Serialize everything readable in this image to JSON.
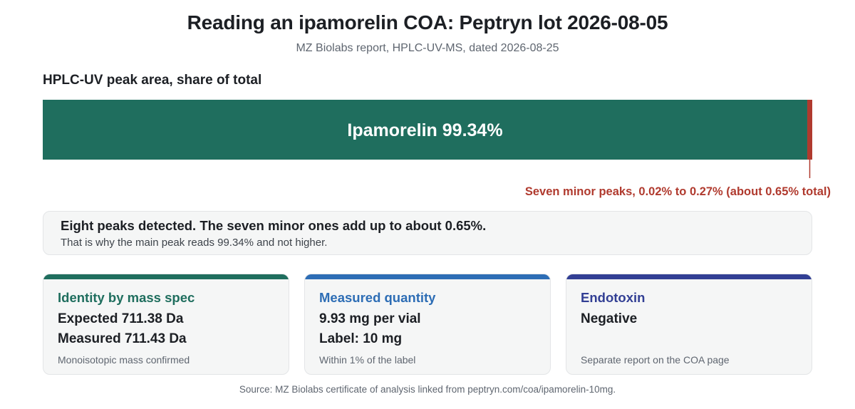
{
  "header": {
    "title": "Reading an ipamorelin COA: Peptryn lot 2026-08-05",
    "subtitle": "MZ Biolabs report, HPLC-UV-MS, dated 2026-08-25"
  },
  "chart_data": {
    "type": "bar",
    "orientation": "horizontal-stacked",
    "title": "HPLC-UV peak area, share of total",
    "unit": "%",
    "segments": [
      {
        "label": "Ipamorelin 99.34%",
        "value": 99.34,
        "color": "#1f6e5e"
      },
      {
        "label": "Seven minor peaks, 0.02% to 0.27% (about 0.65% total)",
        "value": 0.65,
        "color": "#b03a2e"
      }
    ]
  },
  "note": {
    "main": "Eight peaks detected. The seven minor ones add up to about 0.65%.",
    "sub": "That is why the main peak reads 99.34% and not higher."
  },
  "cards": [
    {
      "title": "Identity by mass spec",
      "line1": "Expected 711.38 Da",
      "line2": "Measured 711.43 Da",
      "note": "Monoisotopic mass confirmed",
      "color": "#1f6e5e"
    },
    {
      "title": "Measured quantity",
      "line1": "9.93 mg per vial",
      "line2": "Label: 10 mg",
      "note": "Within 1% of the label",
      "color": "#2d6db5"
    },
    {
      "title": "Endotoxin",
      "line1": "Negative",
      "line2": "",
      "note": "Separate report on the COA page",
      "color": "#323f94"
    }
  ],
  "footer": {
    "source": "Source: MZ Biolabs certificate of analysis linked from peptryn.com/coa/ipamorelin-10mg."
  }
}
